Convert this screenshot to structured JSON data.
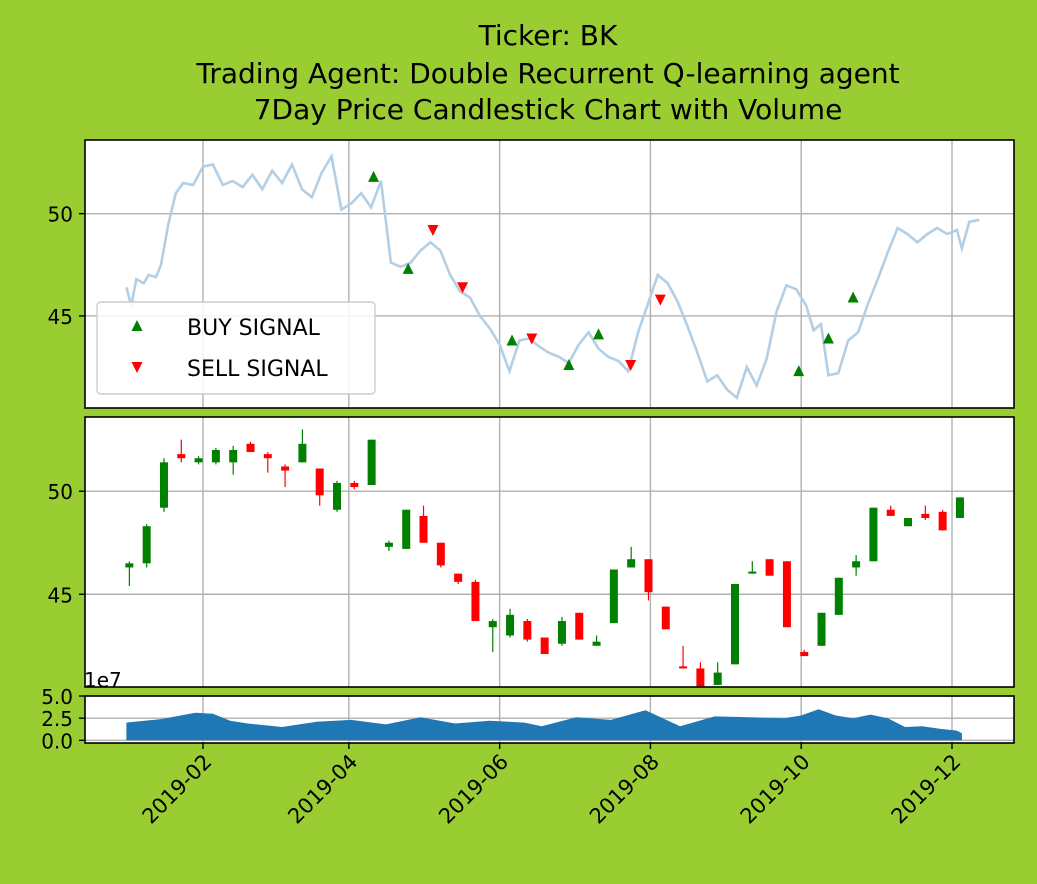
{
  "titles": {
    "line1": "Ticker: BK",
    "line2": "Trading Agent: Double Recurrent Q-learning agent",
    "line3": "7Day Price Candlestick Chart with Volume"
  },
  "colors": {
    "background": "#9acd32",
    "price_line": "#b3cfe5",
    "buy": "#008000",
    "sell": "#ff0000",
    "volume_fill": "#1f77b4",
    "grid": "#b0b0b0"
  },
  "chart_data": [
    {
      "type": "line",
      "panel": "price",
      "price_series": [
        [
          "2019-01-01",
          46.4
        ],
        [
          "2019-01-03",
          45.5
        ],
        [
          "2019-01-05",
          46.8
        ],
        [
          "2019-01-08",
          46.6
        ],
        [
          "2019-01-10",
          47.0
        ],
        [
          "2019-01-13",
          46.9
        ],
        [
          "2019-01-15",
          47.5
        ],
        [
          "2019-01-18",
          49.5
        ],
        [
          "2019-01-21",
          51.0
        ],
        [
          "2019-01-24",
          51.5
        ],
        [
          "2019-01-28",
          51.4
        ],
        [
          "2019-02-01",
          52.3
        ],
        [
          "2019-02-05",
          52.4
        ],
        [
          "2019-02-09",
          51.4
        ],
        [
          "2019-02-13",
          51.6
        ],
        [
          "2019-02-17",
          51.3
        ],
        [
          "2019-02-21",
          51.9
        ],
        [
          "2019-02-25",
          51.2
        ],
        [
          "2019-03-01",
          52.1
        ],
        [
          "2019-03-05",
          51.5
        ],
        [
          "2019-03-09",
          52.4
        ],
        [
          "2019-03-13",
          51.2
        ],
        [
          "2019-03-17",
          50.8
        ],
        [
          "2019-03-21",
          52.0
        ],
        [
          "2019-03-25",
          52.8
        ],
        [
          "2019-03-29",
          50.2
        ],
        [
          "2019-04-02",
          50.5
        ],
        [
          "2019-04-06",
          51.0
        ],
        [
          "2019-04-10",
          50.3
        ],
        [
          "2019-04-14",
          51.6
        ],
        [
          "2019-04-18",
          47.6
        ],
        [
          "2019-04-22",
          47.4
        ],
        [
          "2019-04-26",
          47.6
        ],
        [
          "2019-04-30",
          48.2
        ],
        [
          "2019-05-04",
          48.6
        ],
        [
          "2019-05-08",
          48.2
        ],
        [
          "2019-05-12",
          47.0
        ],
        [
          "2019-05-16",
          46.2
        ],
        [
          "2019-05-20",
          45.9
        ],
        [
          "2019-05-24",
          45.0
        ],
        [
          "2019-05-28",
          44.4
        ],
        [
          "2019-06-01",
          43.6
        ],
        [
          "2019-06-05",
          42.3
        ],
        [
          "2019-06-09",
          43.8
        ],
        [
          "2019-06-13",
          43.9
        ],
        [
          "2019-06-17",
          43.5
        ],
        [
          "2019-06-21",
          43.2
        ],
        [
          "2019-06-25",
          43.0
        ],
        [
          "2019-06-29",
          42.7
        ],
        [
          "2019-07-03",
          43.6
        ],
        [
          "2019-07-07",
          44.2
        ],
        [
          "2019-07-11",
          43.4
        ],
        [
          "2019-07-15",
          43.0
        ],
        [
          "2019-07-19",
          42.8
        ],
        [
          "2019-07-23",
          42.3
        ],
        [
          "2019-07-27",
          44.2
        ],
        [
          "2019-07-31",
          45.6
        ],
        [
          "2019-08-04",
          47.0
        ],
        [
          "2019-08-08",
          46.6
        ],
        [
          "2019-08-12",
          45.7
        ],
        [
          "2019-08-16",
          44.5
        ],
        [
          "2019-08-20",
          43.2
        ],
        [
          "2019-08-24",
          41.8
        ],
        [
          "2019-08-28",
          42.1
        ],
        [
          "2019-09-01",
          41.4
        ],
        [
          "2019-09-05",
          41.0
        ],
        [
          "2019-09-09",
          42.5
        ],
        [
          "2019-09-13",
          41.6
        ],
        [
          "2019-09-17",
          42.9
        ],
        [
          "2019-09-21",
          45.2
        ],
        [
          "2019-09-25",
          46.5
        ],
        [
          "2019-09-29",
          46.3
        ],
        [
          "2019-10-03",
          45.5
        ],
        [
          "2019-10-06",
          44.3
        ],
        [
          "2019-10-09",
          44.6
        ],
        [
          "2019-10-12",
          42.1
        ],
        [
          "2019-10-16",
          42.2
        ],
        [
          "2019-10-20",
          43.8
        ],
        [
          "2019-10-24",
          44.2
        ],
        [
          "2019-10-28",
          45.6
        ],
        [
          "2019-11-01",
          46.8
        ],
        [
          "2019-11-05",
          48.1
        ],
        [
          "2019-11-09",
          49.3
        ],
        [
          "2019-11-13",
          49.0
        ],
        [
          "2019-11-17",
          48.6
        ],
        [
          "2019-11-21",
          49.0
        ],
        [
          "2019-11-25",
          49.3
        ],
        [
          "2019-11-29",
          49.0
        ],
        [
          "2019-12-03",
          49.2
        ],
        [
          "2019-12-05",
          48.3
        ],
        [
          "2019-12-08",
          49.6
        ],
        [
          "2019-12-12",
          49.7
        ]
      ],
      "buy_signals": [
        [
          "2019-04-11",
          51.8
        ],
        [
          "2019-04-25",
          47.3
        ],
        [
          "2019-06-06",
          43.8
        ],
        [
          "2019-06-29",
          42.6
        ],
        [
          "2019-07-11",
          44.1
        ],
        [
          "2019-09-30",
          42.3
        ],
        [
          "2019-10-12",
          43.9
        ],
        [
          "2019-10-22",
          45.9
        ]
      ],
      "sell_signals": [
        [
          "2019-05-05",
          49.2
        ],
        [
          "2019-05-17",
          46.4
        ],
        [
          "2019-06-14",
          43.9
        ],
        [
          "2019-07-24",
          42.6
        ],
        [
          "2019-08-05",
          45.8
        ]
      ],
      "legend": [
        "BUY SIGNAL",
        "SELL SIGNAL"
      ],
      "legend_position": "lower-left",
      "ylim": [
        40.5,
        53.6
      ],
      "yticks": [
        45,
        50
      ],
      "grid": true
    },
    {
      "type": "candlestick",
      "panel": "candles",
      "candles": [
        [
          "2019-01-01",
          46.3,
          46.5,
          46.6,
          45.4
        ],
        [
          "2019-01-08",
          46.5,
          48.3,
          48.4,
          46.3
        ],
        [
          "2019-01-15",
          49.2,
          51.4,
          51.6,
          49.0
        ],
        [
          "2019-01-22",
          51.8,
          51.6,
          52.5,
          51.4
        ],
        [
          "2019-01-29",
          51.4,
          51.6,
          51.7,
          51.3
        ],
        [
          "2019-02-05",
          51.4,
          52.0,
          52.1,
          51.3
        ],
        [
          "2019-02-12",
          51.4,
          52.0,
          52.2,
          50.8
        ],
        [
          "2019-02-19",
          52.3,
          51.9,
          52.4,
          51.9
        ],
        [
          "2019-02-26",
          51.8,
          51.6,
          51.9,
          50.9
        ],
        [
          "2019-03-05",
          51.2,
          51.0,
          51.3,
          50.2
        ],
        [
          "2019-03-12",
          51.4,
          52.3,
          53.0,
          51.4
        ],
        [
          "2019-03-19",
          51.1,
          49.8,
          51.1,
          49.3
        ],
        [
          "2019-03-26",
          49.1,
          50.4,
          50.5,
          49.0
        ],
        [
          "2019-04-02",
          50.4,
          50.2,
          50.5,
          50.1
        ],
        [
          "2019-04-09",
          50.3,
          52.5,
          52.5,
          50.3
        ],
        [
          "2019-04-16",
          47.3,
          47.5,
          47.6,
          47.1
        ],
        [
          "2019-04-23",
          47.2,
          49.1,
          49.1,
          47.2
        ],
        [
          "2019-04-30",
          48.8,
          47.5,
          49.3,
          47.5
        ],
        [
          "2019-05-07",
          47.5,
          46.4,
          47.5,
          46.3
        ],
        [
          "2019-05-14",
          46.0,
          45.6,
          46.0,
          45.5
        ],
        [
          "2019-05-21",
          45.6,
          43.7,
          45.7,
          43.7
        ],
        [
          "2019-05-28",
          43.4,
          43.7,
          43.8,
          42.2
        ],
        [
          "2019-06-04",
          43.0,
          44.0,
          44.3,
          42.9
        ],
        [
          "2019-06-11",
          43.7,
          42.8,
          43.8,
          42.7
        ],
        [
          "2019-06-18",
          42.9,
          42.1,
          42.9,
          42.1
        ],
        [
          "2019-06-25",
          42.6,
          43.7,
          43.9,
          42.5
        ],
        [
          "2019-07-02",
          44.1,
          42.8,
          44.1,
          42.8
        ],
        [
          "2019-07-09",
          42.5,
          42.7,
          43.0,
          42.5
        ],
        [
          "2019-07-16",
          43.6,
          46.2,
          46.2,
          43.6
        ],
        [
          "2019-07-23",
          46.3,
          46.7,
          47.3,
          46.3
        ],
        [
          "2019-07-30",
          46.7,
          45.1,
          46.7,
          44.7
        ],
        [
          "2019-08-06",
          44.4,
          43.3,
          44.4,
          43.3
        ],
        [
          "2019-08-13",
          41.5,
          41.4,
          42.5,
          41.4
        ],
        [
          "2019-08-20",
          41.4,
          40.5,
          41.7,
          40.5
        ],
        [
          "2019-08-27",
          40.6,
          41.2,
          41.7,
          40.6
        ],
        [
          "2019-09-03",
          41.6,
          45.5,
          45.5,
          41.6
        ],
        [
          "2019-09-10",
          46.0,
          46.1,
          46.6,
          46.0
        ],
        [
          "2019-09-17",
          46.7,
          45.9,
          46.7,
          45.9
        ],
        [
          "2019-09-24",
          46.6,
          43.4,
          46.6,
          43.4
        ],
        [
          "2019-10-01",
          42.2,
          42.0,
          42.3,
          42.0
        ],
        [
          "2019-10-08",
          42.5,
          44.1,
          44.1,
          42.5
        ],
        [
          "2019-10-15",
          44.0,
          45.8,
          45.8,
          44.0
        ],
        [
          "2019-10-22",
          46.3,
          46.6,
          46.9,
          45.9
        ],
        [
          "2019-10-29",
          46.6,
          49.2,
          49.2,
          46.6
        ],
        [
          "2019-11-05",
          49.1,
          48.8,
          49.3,
          48.8
        ],
        [
          "2019-11-12",
          48.3,
          48.7,
          48.7,
          48.3
        ],
        [
          "2019-11-19",
          48.9,
          48.7,
          49.3,
          48.6
        ],
        [
          "2019-11-26",
          49.0,
          48.1,
          49.1,
          48.1
        ],
        [
          "2019-12-03",
          48.7,
          49.7,
          49.7,
          48.7
        ]
      ],
      "ylim": [
        40.5,
        53.6
      ],
      "yticks": [
        45,
        50
      ],
      "grid": true
    },
    {
      "type": "area",
      "panel": "volume",
      "volume": [
        [
          "2019-01-01",
          2.0
        ],
        [
          "2019-01-15",
          2.4
        ],
        [
          "2019-01-29",
          3.1
        ],
        [
          "2019-02-05",
          3.0
        ],
        [
          "2019-02-12",
          2.2
        ],
        [
          "2019-02-19",
          1.9
        ],
        [
          "2019-03-05",
          1.5
        ],
        [
          "2019-03-19",
          2.1
        ],
        [
          "2019-04-02",
          2.3
        ],
        [
          "2019-04-16",
          1.8
        ],
        [
          "2019-04-30",
          2.6
        ],
        [
          "2019-05-14",
          1.9
        ],
        [
          "2019-05-28",
          2.2
        ],
        [
          "2019-06-11",
          2.0
        ],
        [
          "2019-06-18",
          1.6
        ],
        [
          "2019-07-02",
          2.6
        ],
        [
          "2019-07-16",
          2.3
        ],
        [
          "2019-07-30",
          3.4
        ],
        [
          "2019-08-13",
          1.6
        ],
        [
          "2019-08-27",
          2.7
        ],
        [
          "2019-09-10",
          2.6
        ],
        [
          "2019-09-24",
          2.5
        ],
        [
          "2019-10-01",
          2.8
        ],
        [
          "2019-10-08",
          3.5
        ],
        [
          "2019-10-15",
          2.8
        ],
        [
          "2019-10-22",
          2.5
        ],
        [
          "2019-10-29",
          2.9
        ],
        [
          "2019-11-05",
          2.5
        ],
        [
          "2019-11-12",
          1.5
        ],
        [
          "2019-11-19",
          1.6
        ],
        [
          "2019-11-26",
          1.3
        ],
        [
          "2019-12-03",
          1.1
        ],
        [
          "2019-12-05",
          0.8
        ]
      ],
      "ylim": [
        -0.3,
        5.0
      ],
      "yticks": [
        0.0,
        2.5,
        5.0
      ],
      "ytick_labels": [
        "0.0",
        "2.5",
        "5.0"
      ],
      "offset_label": "1e7",
      "xticks": [
        "2019-02",
        "2019-04",
        "2019-06",
        "2019-08",
        "2019-10",
        "2019-12"
      ],
      "grid": true
    }
  ]
}
